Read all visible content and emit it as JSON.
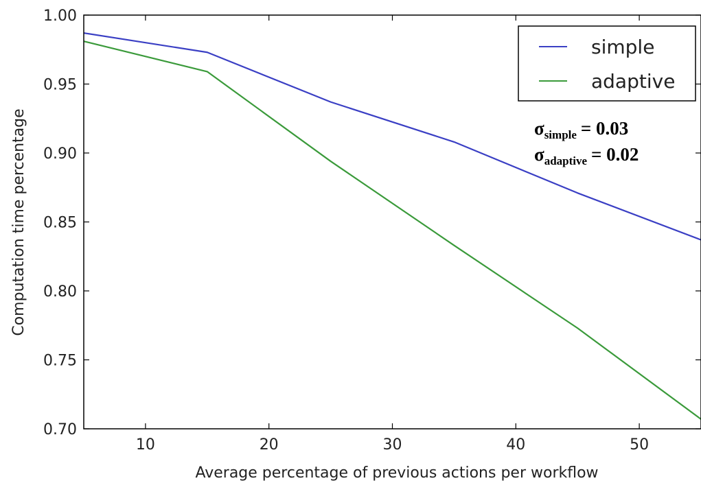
{
  "chart_data": {
    "type": "line",
    "title": "",
    "xlabel": "Average percentage of previous actions per workflow",
    "ylabel": "Computation time percentage",
    "xlim": [
      5,
      55
    ],
    "ylim": [
      0.7,
      1.0
    ],
    "x_ticks": [
      10,
      20,
      30,
      40,
      50
    ],
    "x_tick_labels": [
      "10",
      "20",
      "30",
      "40",
      "50"
    ],
    "y_ticks": [
      0.7,
      0.75,
      0.8,
      0.85,
      0.9,
      0.95,
      1.0
    ],
    "y_tick_labels": [
      "0.70",
      "0.75",
      "0.80",
      "0.85",
      "0.90",
      "0.95",
      "1.00"
    ],
    "grid": false,
    "legend_position": "top-right",
    "x": [
      5,
      15,
      25,
      35,
      45,
      55
    ],
    "series": [
      {
        "name": "simple",
        "color": "#3a3fc4",
        "values": [
          0.987,
          0.973,
          0.937,
          0.908,
          0.871,
          0.837
        ]
      },
      {
        "name": "adaptive",
        "color": "#3a9a3a",
        "values": [
          0.981,
          0.959,
          0.894,
          0.833,
          0.773,
          0.707
        ]
      }
    ],
    "annotations": [
      {
        "symbol": "σ",
        "subscript": "simple",
        "text": "= 0.03"
      },
      {
        "symbol": "σ",
        "subscript": "adaptive",
        "text": "= 0.02"
      }
    ]
  }
}
